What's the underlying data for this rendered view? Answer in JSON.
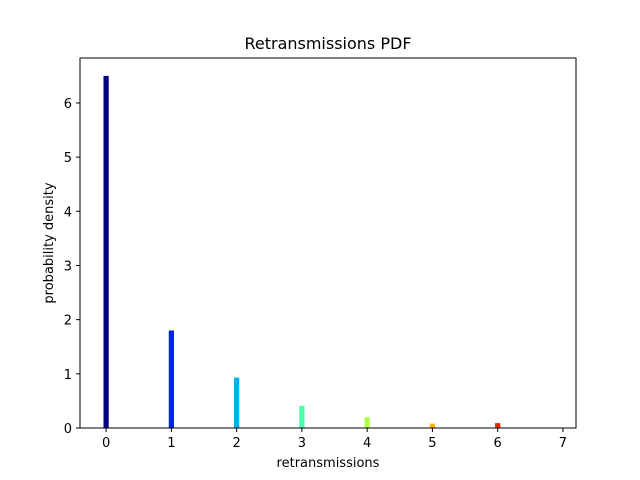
{
  "chart_data": {
    "type": "bar",
    "title": "Retransmissions PDF",
    "xlabel": "retransmissions",
    "ylabel": "probability density",
    "categories": [
      "0",
      "1",
      "2",
      "3",
      "4",
      "5",
      "6",
      "7"
    ],
    "x": [
      0,
      1,
      2,
      3,
      4,
      5,
      6,
      7
    ],
    "values": [
      6.5,
      1.8,
      0.93,
      0.41,
      0.2,
      0.08,
      0.09,
      0.0
    ],
    "bar_colors": [
      "#000080",
      "#0020ff",
      "#00b0f0",
      "#4cffaa",
      "#b0ff47",
      "#ffb000",
      "#f02000",
      "#800000"
    ],
    "xlim": [
      -0.4,
      7.2
    ],
    "ylim": [
      0,
      6.83
    ],
    "xticks": [
      0,
      1,
      2,
      3,
      4,
      5,
      6,
      7
    ],
    "yticks": [
      0,
      1,
      2,
      3,
      4,
      5,
      6
    ],
    "grid": false,
    "legend": "none"
  }
}
